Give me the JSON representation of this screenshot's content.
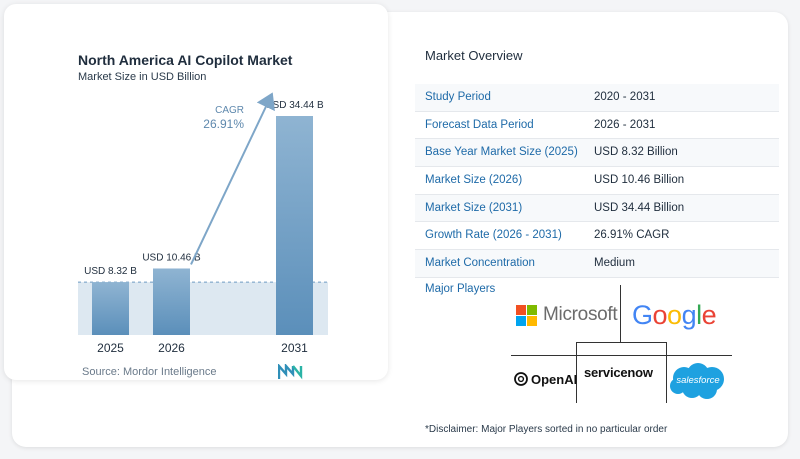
{
  "chart_data": {
    "type": "bar",
    "title": "North America AI Copilot Market",
    "subtitle": "Market Size in USD Billion",
    "categories": [
      "2025",
      "2026",
      "2031"
    ],
    "values": [
      8.32,
      10.46,
      34.44
    ],
    "value_labels": [
      "USD 8.32 B",
      "USD 10.46 B",
      "USD 34.44 B"
    ],
    "ylim": [
      0,
      34.44
    ],
    "cagr_label": "CAGR",
    "cagr_value": "26.91%",
    "grid": false,
    "colors": {
      "bar_top": "#8fb4d2",
      "bar_bottom": "#5b8fba",
      "arrow": "#7ea6c8",
      "shade": "#dde8f1",
      "dashed": "#6f9bc2"
    }
  },
  "source": {
    "label": "Source:",
    "name": "Mordor Intelligence"
  },
  "overview": {
    "title": "Market Overview",
    "rows": [
      {
        "label": "Study Period",
        "value": "2020 - 2031"
      },
      {
        "label": "Forecast Data Period",
        "value": "2026 - 2031"
      },
      {
        "label": "Base Year Market Size (2025)",
        "value": "USD 8.32 Billion"
      },
      {
        "label": "Market Size (2026)",
        "value": "USD 10.46 Billion"
      },
      {
        "label": "Market Size (2031)",
        "value": "USD 34.44 Billion"
      },
      {
        "label": "Growth Rate (2026 - 2031)",
        "value": "26.91% CAGR"
      },
      {
        "label": "Market Concentration",
        "value": "Medium"
      }
    ],
    "major_players_label": "Major Players"
  },
  "players": {
    "microsoft": "Microsoft",
    "google": "Google",
    "openai": "OpenAI",
    "servicenow": "servicenow",
    "salesforce": "salesforce"
  },
  "disclaimer": "*Disclaimer: Major Players sorted in no particular order"
}
